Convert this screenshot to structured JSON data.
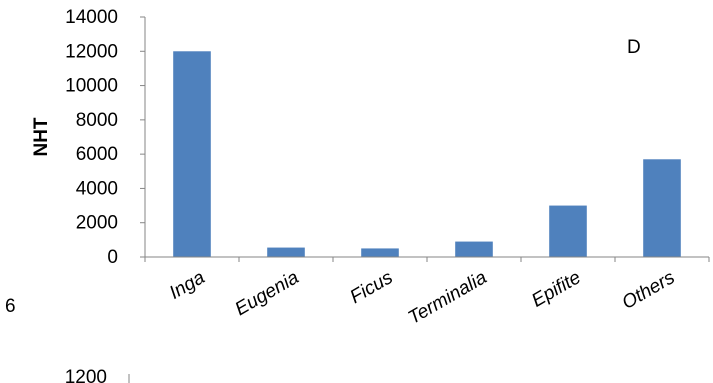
{
  "chart_data": {
    "type": "bar",
    "panel_label": "D",
    "ylabel": "NHT",
    "xlabel": "",
    "title": "",
    "categories": [
      "Inga",
      "Eugenia",
      "Ficus",
      "Terminalia",
      "Epifite",
      "Others"
    ],
    "values": [
      12000,
      550,
      500,
      900,
      3000,
      5700
    ],
    "ylim": [
      0,
      14000
    ],
    "yticks": [
      "0",
      "2000",
      "4000",
      "6000",
      "8000",
      "10000",
      "12000",
      "14000"
    ],
    "bar_color": "#4F81BD",
    "grid": false,
    "legend": "none"
  },
  "fragments": {
    "left_label": "6",
    "next_chart_top_tick": "1200"
  }
}
